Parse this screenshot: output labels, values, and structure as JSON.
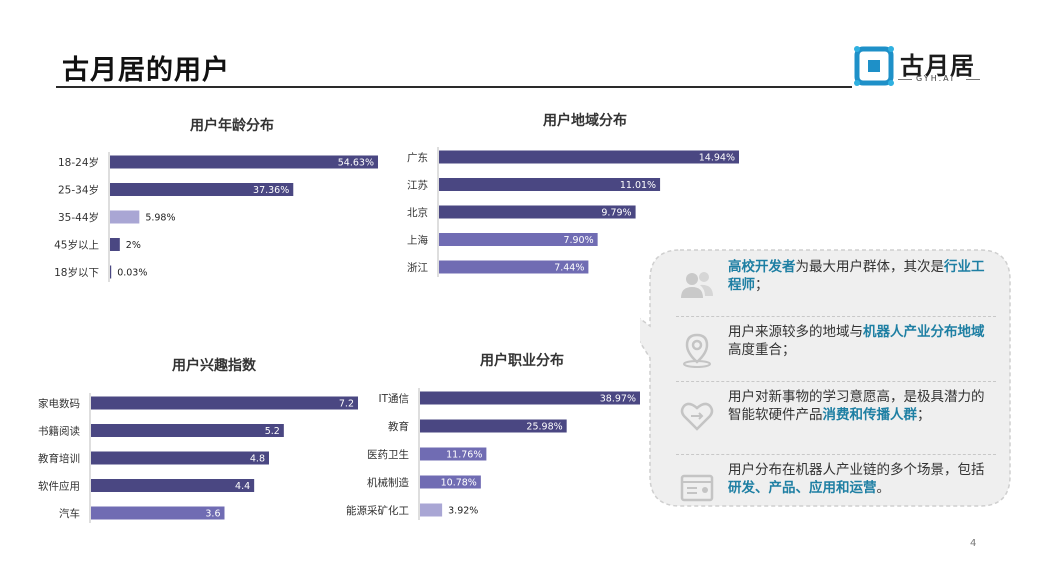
{
  "page": {
    "title": "古月居的用户",
    "page_number": "4"
  },
  "logo": {
    "name": "古月居",
    "sub": "GYH.AI"
  },
  "colors": {
    "dark_bar": "#4a4782",
    "light_bar": "#706cb3",
    "lighter_bar": "#a9a6d4",
    "highlight": "#1e7fa3"
  },
  "callout": {
    "items": [
      {
        "icon": "users-icon",
        "segments": [
          {
            "text": "高校开发者",
            "hl": true
          },
          {
            "text": "为最大用户群体，其次是",
            "hl": false
          },
          {
            "text": "行业工程师",
            "hl": true
          },
          {
            "text": "；",
            "hl": false
          }
        ]
      },
      {
        "icon": "location-pin-icon",
        "segments": [
          {
            "text": "用户来源较多的地域与",
            "hl": false
          },
          {
            "text": "机器人产业分布地域",
            "hl": true
          },
          {
            "text": "高度重合；",
            "hl": false
          }
        ]
      },
      {
        "icon": "heart-icon",
        "segments": [
          {
            "text": "用户对新事物的学习意愿高，是极具潜力的智能软硬件产品",
            "hl": false
          },
          {
            "text": "消费和传播人群",
            "hl": true
          },
          {
            "text": "；",
            "hl": false
          }
        ]
      },
      {
        "icon": "id-card-icon",
        "segments": [
          {
            "text": "用户分布在机器人产业链的多个场景，包括",
            "hl": false
          },
          {
            "text": "研发、产品、应用和运营",
            "hl": true
          },
          {
            "text": "。",
            "hl": false
          }
        ]
      }
    ]
  },
  "chart_data": [
    {
      "id": "age",
      "type": "bar",
      "orientation": "horizontal",
      "title": "用户年龄分布",
      "categories": [
        "18-24岁",
        "25-34岁",
        "35-44岁",
        "45岁以上",
        "18岁以下"
      ],
      "values": [
        54.63,
        37.36,
        5.98,
        2,
        0.03
      ],
      "labels": [
        "54.63%",
        "37.36%",
        "5.98%",
        "2%",
        "0.03%"
      ],
      "xlim": [
        0,
        54.63
      ],
      "grid": false,
      "legend": "none"
    },
    {
      "id": "region",
      "type": "bar",
      "orientation": "horizontal",
      "title": "用户地域分布",
      "categories": [
        "广东",
        "江苏",
        "北京",
        "上海",
        "浙江"
      ],
      "values": [
        14.94,
        11.01,
        9.79,
        7.9,
        7.44
      ],
      "labels": [
        "14.94%",
        "11.01%",
        "9.79%",
        "7.90%",
        "7.44%"
      ],
      "xlim": [
        0,
        14.94
      ],
      "grid": false,
      "legend": "none"
    },
    {
      "id": "interest",
      "type": "bar",
      "orientation": "horizontal",
      "title": "用户兴趣指数",
      "categories": [
        "家电数码",
        "书籍阅读",
        "教育培训",
        "软件应用",
        "汽车"
      ],
      "values": [
        7.2,
        5.2,
        4.8,
        4.4,
        3.6
      ],
      "labels": [
        "7.2",
        "5.2",
        "4.8",
        "4.4",
        "3.6"
      ],
      "xlim": [
        0,
        7.2
      ],
      "grid": false,
      "legend": "none"
    },
    {
      "id": "occupation",
      "type": "bar",
      "orientation": "horizontal",
      "title": "用户职业分布",
      "categories": [
        "IT通信",
        "教育",
        "医药卫生",
        "机械制造",
        "能源采矿化工"
      ],
      "values": [
        38.97,
        25.98,
        11.76,
        10.78,
        3.92
      ],
      "labels": [
        "38.97%",
        "25.98%",
        "11.76%",
        "10.78%",
        "3.92%"
      ],
      "xlim": [
        0,
        38.97
      ],
      "grid": false,
      "legend": "none"
    }
  ]
}
